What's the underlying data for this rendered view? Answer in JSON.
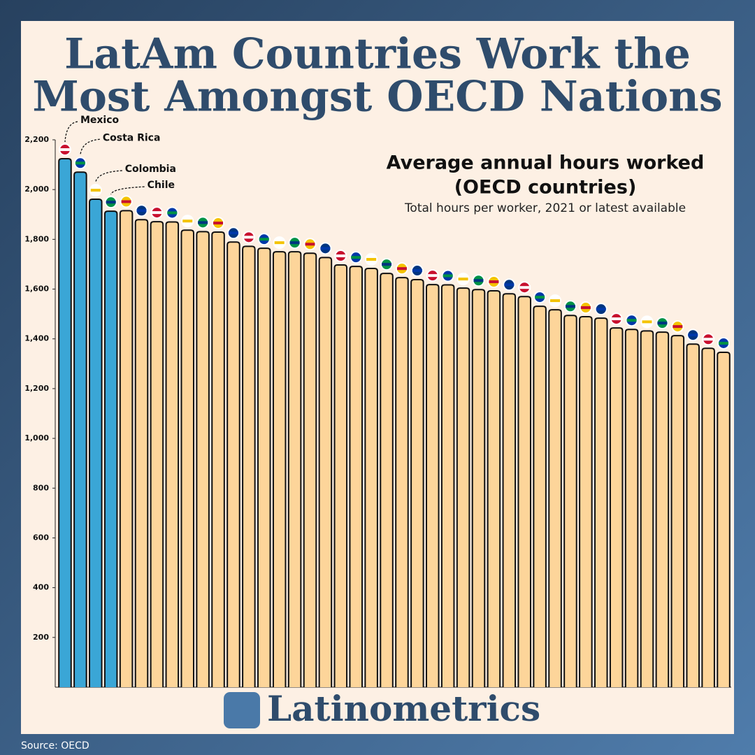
{
  "chart_data": {
    "type": "bar",
    "title": [
      "LatAm Countries Work the",
      "Most Amongst OECD Nations"
    ],
    "subtitle": [
      "Average annual hours worked",
      "(OECD countries)"
    ],
    "note": "Total hours per worker, 2021 or latest available",
    "brand": "Latinometrics",
    "source": "Source: OECD",
    "categories": [
      "Mexico",
      "Costa Rica",
      "Colombia",
      "Chile",
      null,
      null,
      null,
      null,
      null,
      null,
      null,
      null,
      null,
      null,
      null,
      null,
      null,
      null,
      null,
      null,
      null,
      null,
      null,
      null,
      null,
      null,
      null,
      null,
      null,
      null,
      null,
      null,
      null,
      null,
      null,
      null,
      null,
      null,
      null,
      null,
      null,
      null,
      null,
      null
    ],
    "values": [
      2124,
      2070,
      1961,
      1913,
      1915,
      1879,
      1871,
      1870,
      1837,
      1831,
      1829,
      1789,
      1772,
      1764,
      1750,
      1750,
      1744,
      1727,
      1697,
      1691,
      1683,
      1663,
      1646,
      1638,
      1618,
      1617,
      1604,
      1598,
      1593,
      1581,
      1570,
      1531,
      1517,
      1494,
      1489,
      1483,
      1444,
      1438,
      1432,
      1427,
      1413,
      1379,
      1362,
      1346
    ],
    "colors": [
      "#3aa6d6",
      "#3aa6d6",
      "#3aa6d6",
      "#3aa6d6",
      "#fdd59a",
      "#fdd59a",
      "#fdd59a",
      "#fdd59a",
      "#fdd59a",
      "#fdd59a",
      "#fdd59a",
      "#fdd59a",
      "#fdd59a",
      "#fdd59a",
      "#fdd59a",
      "#fdd59a",
      "#fdd59a",
      "#fdd59a",
      "#fdd59a",
      "#fdd59a",
      "#fdd59a",
      "#fdd59a",
      "#fdd59a",
      "#fdd59a",
      "#fdd59a",
      "#fdd59a",
      "#fdd59a",
      "#fdd59a",
      "#fdd59a",
      "#fdd59a",
      "#fdd59a",
      "#fdd59a",
      "#fdd59a",
      "#fdd59a",
      "#fdd59a",
      "#fdd59a",
      "#fdd59a",
      "#fdd59a",
      "#fdd59a",
      "#fdd59a",
      "#fdd59a",
      "#fdd59a",
      "#fdd59a",
      "#fdd59a"
    ],
    "ylim": [
      0,
      2200
    ],
    "yticks": [
      200,
      400,
      600,
      800,
      {
        "value": 1000,
        "label": "1,000"
      },
      {
        "value": 1200,
        "label": "1,200"
      },
      {
        "value": 1400,
        "label": "1,400"
      },
      {
        "value": 1600,
        "label": "1,600"
      },
      {
        "value": 1800,
        "label": "1,800"
      },
      {
        "value": 2000,
        "label": "2,000"
      },
      {
        "value": 2200,
        "label": "2,200"
      }
    ],
    "grid": false
  }
}
